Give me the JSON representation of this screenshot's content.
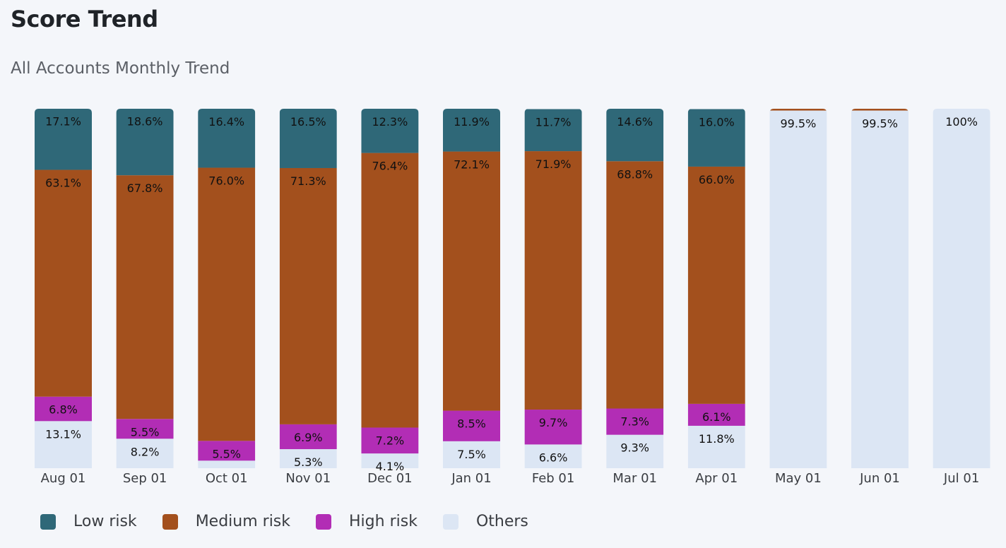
{
  "header": {
    "title": "Score Trend",
    "subtitle": "All Accounts Monthly Trend"
  },
  "colors": {
    "low": "#2f6878",
    "medium": "#a3501d",
    "high": "#b22db5",
    "others": "#dce6f4",
    "background": "#f4f6fa"
  },
  "chart_data": {
    "type": "bar",
    "stacked": true,
    "normalized_percent": true,
    "categories": [
      "Aug 01",
      "Sep 01",
      "Oct 01",
      "Nov 01",
      "Dec 01",
      "Jan 01",
      "Feb 01",
      "Mar 01",
      "Apr 01",
      "May 01",
      "Jun 01",
      "Jul 01"
    ],
    "series": [
      {
        "name": "Others",
        "key": "others",
        "values": [
          13.1,
          8.2,
          2.1,
          5.3,
          4.1,
          7.5,
          6.6,
          9.3,
          11.8,
          99.5,
          99.5,
          100
        ],
        "labels": [
          "13.1%",
          "8.2%",
          "",
          "5.3%",
          "4.1%",
          "7.5%",
          "6.6%",
          "9.3%",
          "11.8%",
          "99.5%",
          "99.5%",
          "100%"
        ]
      },
      {
        "name": "High risk",
        "key": "high",
        "values": [
          6.8,
          5.5,
          5.5,
          6.9,
          7.2,
          8.5,
          9.7,
          7.3,
          6.1,
          0,
          0,
          0
        ],
        "labels": [
          "6.8%",
          "5.5%",
          "5.5%",
          "6.9%",
          "7.2%",
          "8.5%",
          "9.7%",
          "7.3%",
          "6.1%",
          "",
          "",
          ""
        ]
      },
      {
        "name": "Medium risk",
        "key": "medium",
        "values": [
          63.1,
          67.8,
          76.0,
          71.3,
          76.4,
          72.1,
          71.9,
          68.8,
          66.0,
          0.5,
          0.5,
          0
        ],
        "labels": [
          "63.1%",
          "67.8%",
          "76.0%",
          "71.3%",
          "76.4%",
          "72.1%",
          "71.9%",
          "68.8%",
          "66.0%",
          "",
          "",
          ""
        ]
      },
      {
        "name": "Low risk",
        "key": "low",
        "values": [
          17.1,
          18.6,
          16.4,
          16.5,
          12.3,
          11.9,
          11.7,
          14.6,
          16.0,
          0,
          0,
          0
        ],
        "labels": [
          "17.1%",
          "18.6%",
          "16.4%",
          "16.5%",
          "12.3%",
          "11.9%",
          "11.7%",
          "14.6%",
          "16.0%",
          "",
          "",
          ""
        ]
      }
    ],
    "legend": [
      {
        "name": "Low risk",
        "key": "low"
      },
      {
        "name": "Medium risk",
        "key": "medium"
      },
      {
        "name": "High risk",
        "key": "high"
      },
      {
        "name": "Others",
        "key": "others"
      }
    ],
    "ylim": [
      0,
      100
    ],
    "grid": false,
    "legend_position": "bottom-left"
  }
}
